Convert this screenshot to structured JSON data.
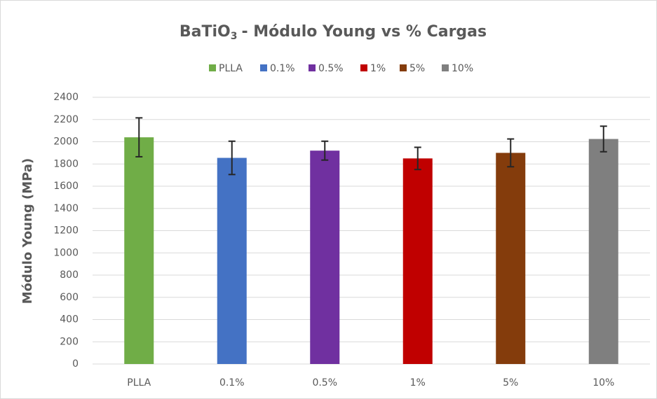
{
  "chart_data": {
    "type": "bar",
    "title": {
      "main": "BaTiO",
      "sub": "3",
      "rest": "- Módulo Young vs % Cargas"
    },
    "y_label": "Módulo Young (MPa)",
    "categories": [
      "PLLA",
      "0.1%",
      "0.5%",
      "1%",
      "5%",
      "10%"
    ],
    "values": [
      2040,
      1855,
      1920,
      1850,
      1900,
      2025
    ],
    "errors": [
      175,
      150,
      85,
      100,
      125,
      115
    ],
    "colors": [
      "#70ad47",
      "#4472c4",
      "#7030a0",
      "#c00000",
      "#843c0c",
      "#7f7f7f"
    ],
    "ylim": [
      0,
      2400
    ],
    "yticks": [
      0,
      200,
      400,
      600,
      800,
      1000,
      1200,
      1400,
      1600,
      1800,
      2000,
      2200,
      2400
    ],
    "grid": true,
    "legend": "top"
  }
}
